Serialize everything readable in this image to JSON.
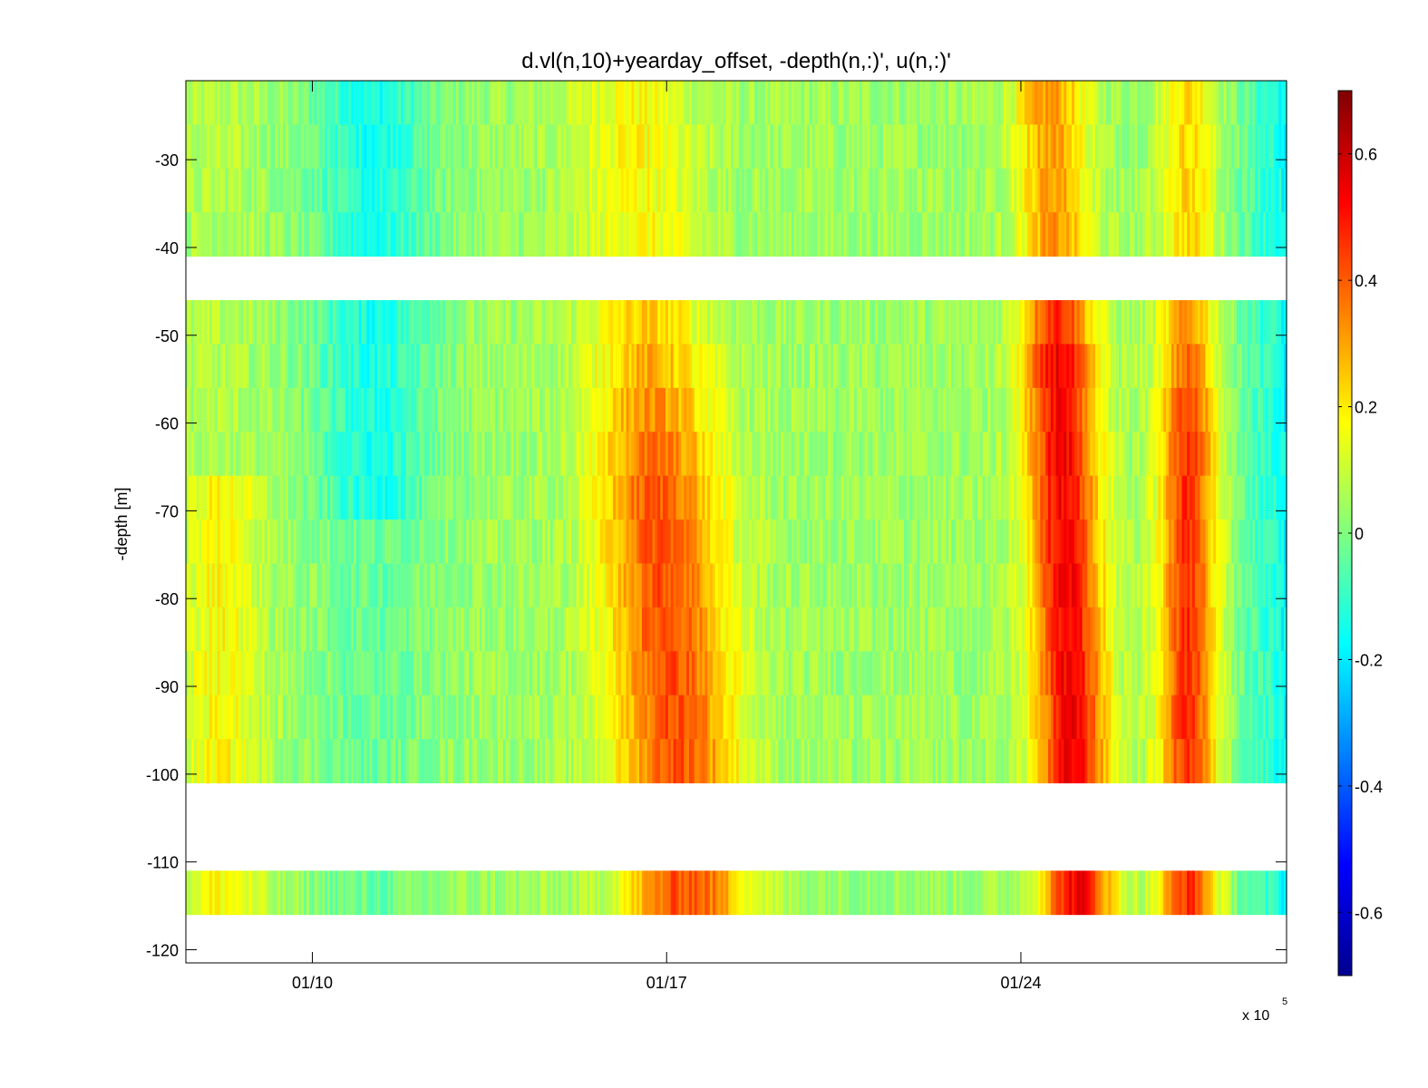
{
  "chart_data": {
    "type": "heatmap",
    "title": "d.vl(n,10)+yearday_offset, -depth(n,:)', u(n,:)'",
    "ylabel": "-depth [m]",
    "xlabel": "",
    "x_multiplier_label": "x 10",
    "x_multiplier_exponent": "5",
    "x_range": [
      "01/07 12:00",
      "01/29 06:00"
    ],
    "ylim": [
      -121.5,
      -21
    ],
    "x_ticks": [
      "01/10",
      "01/17",
      "01/24"
    ],
    "y_ticks": [
      -30,
      -40,
      -50,
      -60,
      -70,
      -80,
      -90,
      -100,
      -110,
      -120
    ],
    "colorbar": {
      "colormap": "jet",
      "clim": [
        -0.7,
        0.7
      ],
      "ticks": [
        0.6,
        0.4,
        0.2,
        0,
        -0.2,
        -0.4,
        -0.6
      ]
    },
    "bins": [
      {
        "top": -21,
        "bottom": -26
      },
      {
        "top": -26,
        "bottom": -31
      },
      {
        "top": -31,
        "bottom": -36
      },
      {
        "top": -36,
        "bottom": -41
      },
      {
        "top": -46,
        "bottom": -51
      },
      {
        "top": -51,
        "bottom": -56
      },
      {
        "top": -56,
        "bottom": -61
      },
      {
        "top": -61,
        "bottom": -66
      },
      {
        "top": -66,
        "bottom": -71
      },
      {
        "top": -71,
        "bottom": -76
      },
      {
        "top": -76,
        "bottom": -81
      },
      {
        "top": -81,
        "bottom": -86
      },
      {
        "top": -86,
        "bottom": -91
      },
      {
        "top": -91,
        "bottom": -96
      },
      {
        "top": -96,
        "bottom": -101
      },
      {
        "top": -111,
        "bottom": -116
      }
    ],
    "grid": false,
    "legend": "colorbar-right"
  }
}
